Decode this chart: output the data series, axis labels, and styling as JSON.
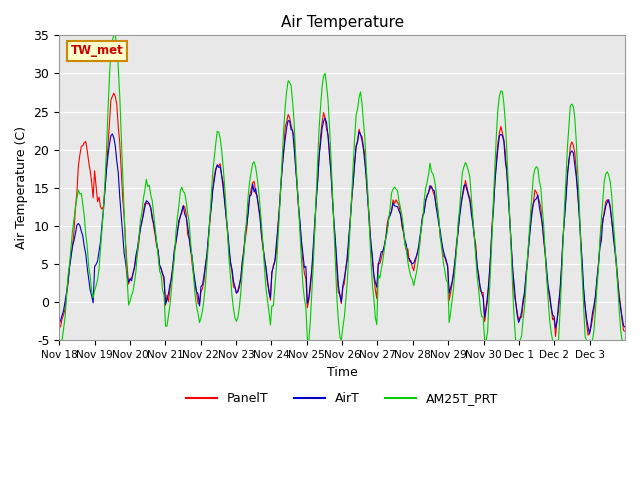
{
  "title": "Air Temperature",
  "ylabel": "Air Temperature (C)",
  "xlabel": "Time",
  "annotation": "TW_met",
  "ylim": [
    -5,
    35
  ],
  "background_color": "#e8e8e8",
  "colors": {
    "PanelT": "#ff0000",
    "AirT": "#0000cc",
    "AM25T_PRT": "#00cc00"
  },
  "legend_labels": [
    "PanelT",
    "AirT",
    "AM25T_PRT"
  ],
  "x_tick_labels": [
    "Nov 18",
    "Nov 19",
    "Nov 20",
    "Nov 21",
    "Nov 22",
    "Nov 23",
    "Nov 24",
    "Nov 25",
    "Nov 26",
    "Nov 27",
    "Nov 28",
    "Nov 29",
    "Nov 30",
    "Dec 1",
    "Dec 2",
    "Dec 3"
  ],
  "yticks": [
    -5,
    0,
    5,
    10,
    15,
    20,
    25,
    30,
    35
  ]
}
